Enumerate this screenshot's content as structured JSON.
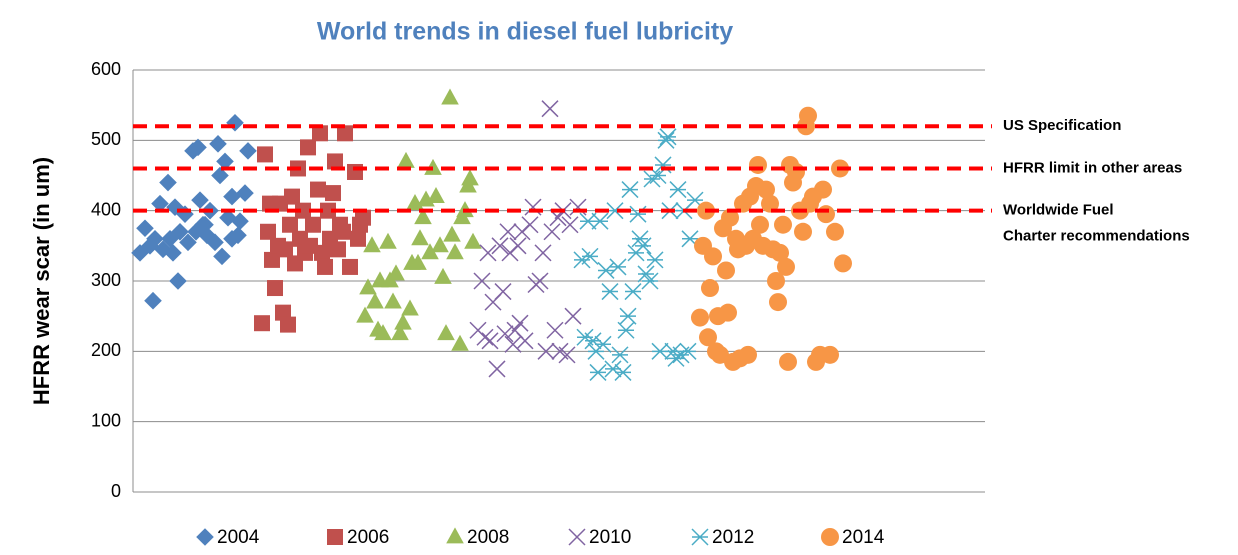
{
  "chart_data": {
    "type": "scatter",
    "title": "World trends in diesel fuel lubricity",
    "y_label": "HFRR wear scar (in um)",
    "ylim": [
      0,
      600
    ],
    "yticks": [
      0,
      100,
      200,
      300,
      400,
      500,
      600
    ],
    "xlim": [
      133,
      985
    ],
    "grid": true,
    "legend": "bottom",
    "reference_lines": [
      {
        "label_lines": [
          "US Specification"
        ],
        "value": 520,
        "color": "#ff0000"
      },
      {
        "label_lines": [
          "HFRR limit in other areas"
        ],
        "value": 460,
        "color": "#ff0000"
      },
      {
        "label_lines": [
          "Worldwide Fuel",
          "Charter recommendations"
        ],
        "value": 400,
        "color": "#ff0000"
      }
    ],
    "series": [
      {
        "name": "2004",
        "color": "#4f81bd",
        "marker": "diamond",
        "x": [
          140,
          145,
          150,
          153,
          155,
          160,
          163,
          168,
          170,
          173,
          175,
          178,
          180,
          185,
          188,
          193,
          196,
          198,
          200,
          203,
          207,
          210,
          215,
          218,
          220,
          222,
          225,
          228,
          232,
          235,
          238,
          240,
          245,
          248,
          232,
          205
        ],
        "values": [
          340,
          375,
          350,
          272,
          360,
          410,
          345,
          440,
          360,
          340,
          405,
          300,
          370,
          395,
          355,
          485,
          370,
          490,
          415,
          380,
          365,
          400,
          355,
          495,
          450,
          335,
          470,
          390,
          420,
          525,
          365,
          385,
          425,
          485,
          360,
          380
        ]
      },
      {
        "name": "2006",
        "color": "#c0504d",
        "marker": "square",
        "x": [
          262,
          265,
          268,
          270,
          272,
          275,
          278,
          280,
          283,
          285,
          288,
          290,
          292,
          295,
          298,
          300,
          303,
          305,
          308,
          310,
          313,
          318,
          320,
          322,
          325,
          328,
          330,
          333,
          335,
          338,
          340,
          343,
          345,
          350,
          355,
          358,
          360,
          363
        ],
        "values": [
          240,
          480,
          370,
          410,
          330,
          290,
          350,
          410,
          255,
          345,
          238,
          380,
          420,
          325,
          460,
          360,
          400,
          340,
          490,
          350,
          380,
          430,
          510,
          340,
          320,
          400,
          360,
          425,
          470,
          345,
          380,
          370,
          510,
          320,
          455,
          360,
          380,
          390
        ]
      },
      {
        "name": "2008",
        "color": "#9bbb59",
        "marker": "triangle",
        "x": [
          365,
          368,
          372,
          375,
          378,
          380,
          383,
          388,
          390,
          393,
          396,
          400,
          403,
          406,
          410,
          412,
          415,
          418,
          420,
          423,
          426,
          430,
          433,
          436,
          440,
          443,
          446,
          450,
          452,
          455,
          460,
          462,
          465,
          468,
          470,
          473
        ],
        "values": [
          250,
          290,
          350,
          270,
          230,
          300,
          225,
          355,
          300,
          270,
          310,
          225,
          240,
          470,
          260,
          325,
          410,
          325,
          360,
          390,
          415,
          340,
          460,
          420,
          350,
          305,
          225,
          560,
          365,
          340,
          210,
          390,
          400,
          435,
          445,
          355
        ]
      },
      {
        "name": "2010",
        "color": "#8064a2",
        "marker": "x",
        "x": [
          478,
          482,
          485,
          488,
          490,
          493,
          497,
          500,
          503,
          505,
          508,
          510,
          513,
          515,
          518,
          520,
          522,
          525,
          530,
          533,
          536,
          540,
          543,
          546,
          550,
          552,
          555,
          558,
          560,
          563,
          567,
          570,
          573,
          578
        ],
        "values": [
          230,
          300,
          220,
          340,
          215,
          270,
          175,
          350,
          285,
          225,
          370,
          340,
          210,
          230,
          350,
          240,
          370,
          215,
          380,
          405,
          295,
          300,
          340,
          200,
          545,
          370,
          230,
          390,
          200,
          400,
          195,
          380,
          250,
          405
        ]
      },
      {
        "name": "2012",
        "color": "#4bacc6",
        "marker": "star",
        "x": [
          582,
          585,
          588,
          590,
          593,
          596,
          598,
          600,
          603,
          606,
          610,
          613,
          615,
          618,
          620,
          623,
          626,
          628,
          630,
          633,
          636,
          638,
          640,
          643,
          646,
          650,
          652,
          655,
          658,
          660,
          663,
          666,
          668,
          670,
          673,
          676,
          678,
          681,
          684,
          688,
          690,
          695
        ],
        "values": [
          330,
          220,
          385,
          335,
          215,
          200,
          170,
          385,
          210,
          315,
          285,
          175,
          400,
          320,
          195,
          170,
          230,
          250,
          430,
          285,
          340,
          395,
          360,
          350,
          310,
          300,
          445,
          330,
          450,
          200,
          465,
          500,
          505,
          400,
          200,
          190,
          430,
          195,
          400,
          200,
          360,
          415
        ]
      },
      {
        "name": "2014",
        "color": "#f79646",
        "marker": "circle",
        "x": [
          700,
          703,
          706,
          708,
          710,
          713,
          716,
          718,
          720,
          723,
          726,
          728,
          730,
          733,
          736,
          738,
          740,
          743,
          746,
          748,
          750,
          753,
          756,
          758,
          760,
          763,
          766,
          770,
          773,
          776,
          778,
          780,
          783,
          786,
          788,
          790,
          793,
          796,
          800,
          803,
          806,
          808,
          810,
          813,
          816,
          820,
          823,
          826,
          830,
          835,
          840,
          843
        ],
        "values": [
          248,
          350,
          400,
          220,
          290,
          335,
          200,
          250,
          195,
          375,
          315,
          255,
          390,
          185,
          360,
          345,
          190,
          410,
          350,
          195,
          420,
          360,
          435,
          465,
          380,
          350,
          430,
          410,
          345,
          300,
          270,
          340,
          380,
          320,
          185,
          465,
          440,
          455,
          400,
          370,
          520,
          535,
          410,
          420,
          185,
          195,
          430,
          395,
          195,
          370,
          460,
          325
        ]
      }
    ]
  }
}
